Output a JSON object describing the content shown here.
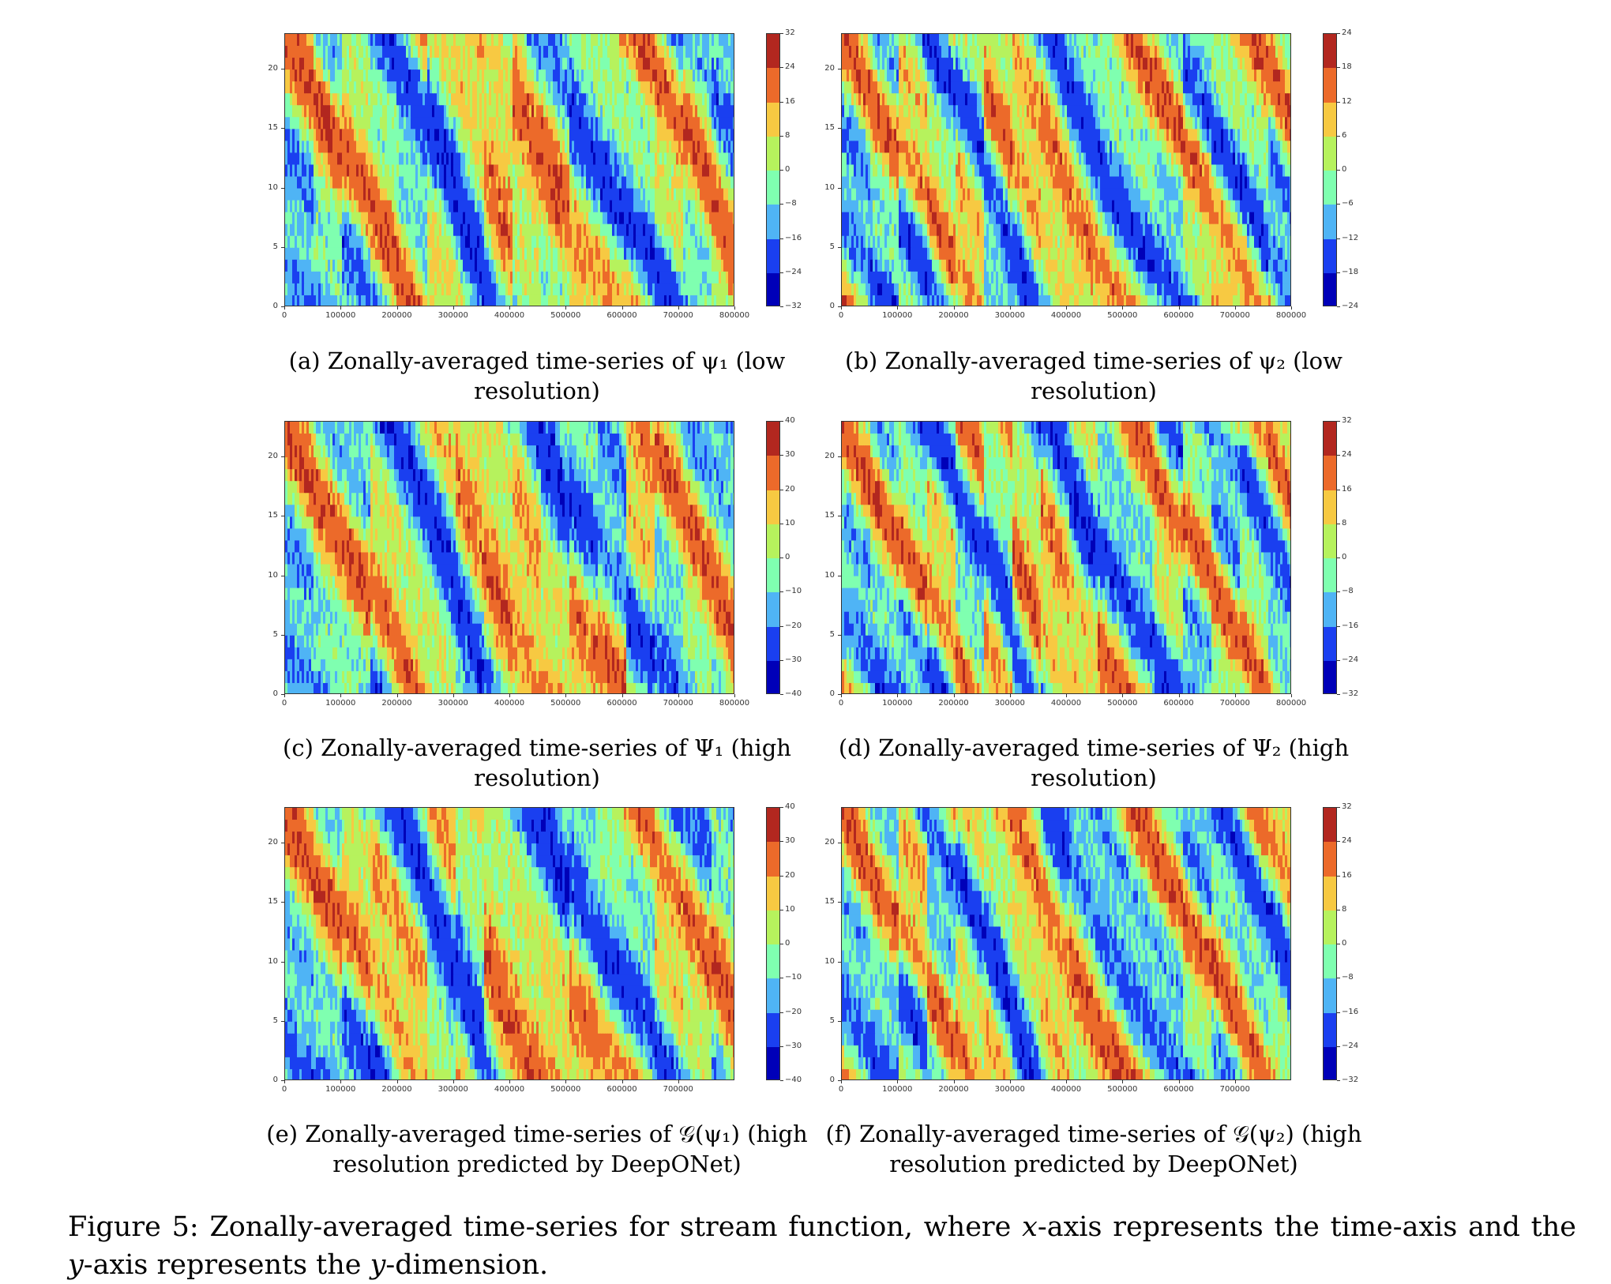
{
  "figure": {
    "caption_prefix": "Figure 5:",
    "caption_text_1": "Zonally-averaged time-series for stream function, where ",
    "caption_x": "x",
    "caption_text_2": "-axis represents the time-axis and the ",
    "caption_y": "y",
    "caption_text_3": "-axis represents the ",
    "caption_y2": "y",
    "caption_text_4": "-dimension."
  },
  "panels": [
    {
      "id": "a",
      "caption_line1": "(a) Zonally-averaged time-series of ψ₁ (low",
      "caption_line2": "resolution)",
      "chart_data": {
        "type": "heatmap",
        "xlabel": "",
        "ylabel": "",
        "xlim": [
          0,
          800000
        ],
        "ylim": [
          0,
          23
        ],
        "x_ticks": [
          "0",
          "100000",
          "200000",
          "300000",
          "400000",
          "500000",
          "600000",
          "700000",
          "800000"
        ],
        "y_ticks": [
          "0",
          "5",
          "10",
          "15",
          "20"
        ],
        "colorbar_ticks": [
          "32",
          "24",
          "16",
          "8",
          "0",
          "−8",
          "−16",
          "−24",
          "−32"
        ],
        "colormap": [
          "#b2271f",
          "#ec6a2a",
          "#f7c942",
          "#b6f25d",
          "#7fffb0",
          "#4fb4f5",
          "#1a3ff0",
          "#0000b8"
        ]
      }
    },
    {
      "id": "b",
      "caption_line1": "(b) Zonally-averaged time-series of ψ₂ (low",
      "caption_line2": "resolution)",
      "chart_data": {
        "type": "heatmap",
        "xlabel": "",
        "ylabel": "",
        "xlim": [
          0,
          800000
        ],
        "ylim": [
          0,
          23
        ],
        "x_ticks": [
          "0",
          "100000",
          "200000",
          "300000",
          "400000",
          "500000",
          "600000",
          "700000",
          "800000"
        ],
        "y_ticks": [
          "0",
          "5",
          "10",
          "15",
          "20"
        ],
        "colorbar_ticks": [
          "24",
          "18",
          "12",
          "6",
          "0",
          "−6",
          "−12",
          "−18",
          "−24"
        ],
        "colormap": [
          "#b2271f",
          "#ec6a2a",
          "#f7c942",
          "#b6f25d",
          "#7fffb0",
          "#4fb4f5",
          "#1a3ff0",
          "#0000b8"
        ]
      }
    },
    {
      "id": "c",
      "caption_line1": "(c) Zonally-averaged time-series of Ψ₁ (high",
      "caption_line2": "resolution)",
      "chart_data": {
        "type": "heatmap",
        "xlabel": "",
        "ylabel": "",
        "xlim": [
          0,
          800000
        ],
        "ylim": [
          0,
          23
        ],
        "x_ticks": [
          "0",
          "100000",
          "200000",
          "300000",
          "400000",
          "500000",
          "600000",
          "700000",
          "800000"
        ],
        "y_ticks": [
          "0",
          "5",
          "10",
          "15",
          "20"
        ],
        "colorbar_ticks": [
          "40",
          "30",
          "20",
          "10",
          "0",
          "−10",
          "−20",
          "−30",
          "−40"
        ],
        "colormap": [
          "#b2271f",
          "#ec6a2a",
          "#f7c942",
          "#b6f25d",
          "#7fffb0",
          "#4fb4f5",
          "#1a3ff0",
          "#0000b8"
        ]
      }
    },
    {
      "id": "d",
      "caption_line1": "(d) Zonally-averaged time-series of Ψ₂ (high",
      "caption_line2": "resolution)",
      "chart_data": {
        "type": "heatmap",
        "xlabel": "",
        "ylabel": "",
        "xlim": [
          0,
          800000
        ],
        "ylim": [
          0,
          23
        ],
        "x_ticks": [
          "0",
          "100000",
          "200000",
          "300000",
          "400000",
          "500000",
          "600000",
          "700000",
          "800000"
        ],
        "y_ticks": [
          "0",
          "5",
          "10",
          "15",
          "20"
        ],
        "colorbar_ticks": [
          "32",
          "24",
          "16",
          "8",
          "0",
          "−8",
          "−16",
          "−24",
          "−32"
        ],
        "colormap": [
          "#b2271f",
          "#ec6a2a",
          "#f7c942",
          "#b6f25d",
          "#7fffb0",
          "#4fb4f5",
          "#1a3ff0",
          "#0000b8"
        ]
      }
    },
    {
      "id": "e",
      "caption_line1": "(e) Zonally-averaged time-series of 𝒢(ψ₁) (high",
      "caption_line2": "resolution predicted by DeepONet)",
      "chart_data": {
        "type": "heatmap",
        "xlabel": "",
        "ylabel": "",
        "xlim": [
          0,
          800000
        ],
        "ylim": [
          0,
          23
        ],
        "x_ticks": [
          "0",
          "100000",
          "200000",
          "300000",
          "400000",
          "500000",
          "600000",
          "700000"
        ],
        "y_ticks": [
          "0",
          "5",
          "10",
          "15",
          "20"
        ],
        "colorbar_ticks": [
          "40",
          "30",
          "20",
          "10",
          "0",
          "−10",
          "−20",
          "−30",
          "−40"
        ],
        "colormap": [
          "#b2271f",
          "#ec6a2a",
          "#f7c942",
          "#b6f25d",
          "#7fffb0",
          "#4fb4f5",
          "#1a3ff0",
          "#0000b8"
        ]
      }
    },
    {
      "id": "f",
      "caption_line1": "(f) Zonally-averaged time-series of 𝒢(ψ₂) (high",
      "caption_line2": "resolution predicted by DeepONet)",
      "chart_data": {
        "type": "heatmap",
        "xlabel": "",
        "ylabel": "",
        "xlim": [
          0,
          800000
        ],
        "ylim": [
          0,
          23
        ],
        "x_ticks": [
          "0",
          "100000",
          "200000",
          "300000",
          "400000",
          "500000",
          "600000",
          "700000"
        ],
        "y_ticks": [
          "0",
          "5",
          "10",
          "15",
          "20"
        ],
        "colorbar_ticks": [
          "32",
          "24",
          "16",
          "8",
          "0",
          "−8",
          "−16",
          "−24",
          "−32"
        ],
        "colormap": [
          "#b2271f",
          "#ec6a2a",
          "#f7c942",
          "#b6f25d",
          "#7fffb0",
          "#4fb4f5",
          "#1a3ff0",
          "#0000b8"
        ]
      }
    }
  ]
}
